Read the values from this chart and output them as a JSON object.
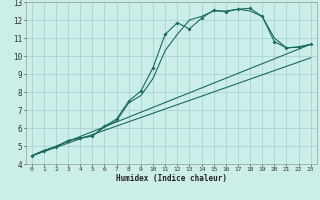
{
  "xlabel": "Humidex (Indice chaleur)",
  "bg_color": "#cceee8",
  "grid_color": "#aad4ce",
  "line_color": "#1a6b5e",
  "xlim": [
    -0.5,
    23.5
  ],
  "ylim": [
    4,
    13
  ],
  "xticks": [
    0,
    1,
    2,
    3,
    4,
    5,
    6,
    7,
    8,
    9,
    10,
    11,
    12,
    13,
    14,
    15,
    16,
    17,
    18,
    19,
    20,
    21,
    22,
    23
  ],
  "yticks": [
    4,
    5,
    6,
    7,
    8,
    9,
    10,
    11,
    12,
    13
  ],
  "line1_x": [
    0,
    1,
    2,
    3,
    4,
    5,
    6,
    7,
    8,
    9,
    10,
    11,
    12,
    13,
    14,
    15,
    16,
    17,
    18,
    19,
    20,
    21,
    22,
    23
  ],
  "line1_y": [
    4.45,
    4.75,
    4.95,
    5.3,
    5.45,
    5.55,
    6.1,
    6.5,
    7.5,
    8.05,
    9.35,
    11.2,
    11.85,
    11.5,
    12.1,
    12.55,
    12.45,
    12.6,
    12.65,
    12.2,
    10.8,
    10.45,
    10.5,
    10.65
  ],
  "line2_x": [
    0,
    1,
    2,
    3,
    4,
    5,
    6,
    7,
    8,
    9,
    10,
    11,
    12,
    13,
    14,
    15,
    16,
    17,
    18,
    19,
    20,
    21,
    22,
    23
  ],
  "line2_y": [
    4.45,
    4.75,
    4.95,
    5.3,
    5.45,
    5.55,
    6.05,
    6.4,
    7.4,
    7.8,
    8.75,
    10.3,
    11.2,
    12.0,
    12.2,
    12.5,
    12.5,
    12.6,
    12.5,
    12.2,
    11.0,
    10.45,
    10.5,
    10.65
  ],
  "line3_x": [
    0,
    23
  ],
  "line3_y": [
    4.45,
    10.65
  ],
  "line4_x": [
    0,
    23
  ],
  "line4_y": [
    4.45,
    9.9
  ]
}
